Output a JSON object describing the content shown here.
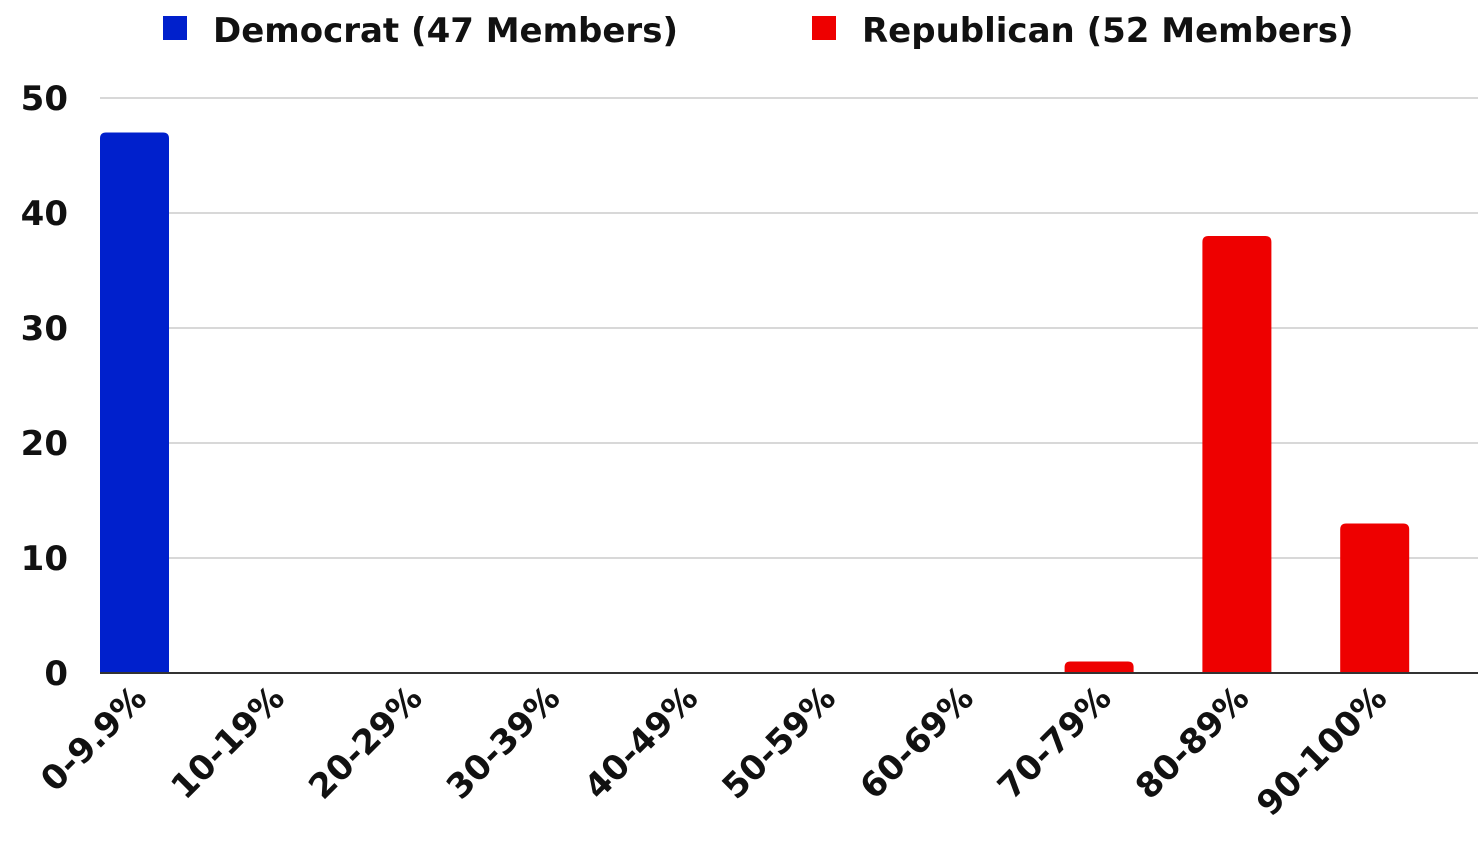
{
  "chart_data": {
    "type": "bar",
    "title": "",
    "xlabel": "",
    "ylabel": "",
    "categories": [
      "0-9.9%",
      "10-19%",
      "20-29%",
      "30-39%",
      "40-49%",
      "50-59%",
      "60-69%",
      "70-79%",
      "80-89%",
      "90-100%"
    ],
    "series": [
      {
        "name": "Democrat (47 Members)",
        "color": "#0020CC",
        "values": [
          47,
          0,
          0,
          0,
          0,
          0,
          0,
          0,
          0,
          0
        ]
      },
      {
        "name": "Republican (52 Members)",
        "color": "#EE0000",
        "values": [
          0,
          0,
          0,
          0,
          0,
          0,
          0,
          1,
          38,
          13
        ]
      }
    ],
    "ylim": [
      0,
      50
    ],
    "yticks": [
      0,
      10,
      20,
      30,
      40,
      50
    ],
    "grid": true,
    "legend_position": "top-center"
  }
}
